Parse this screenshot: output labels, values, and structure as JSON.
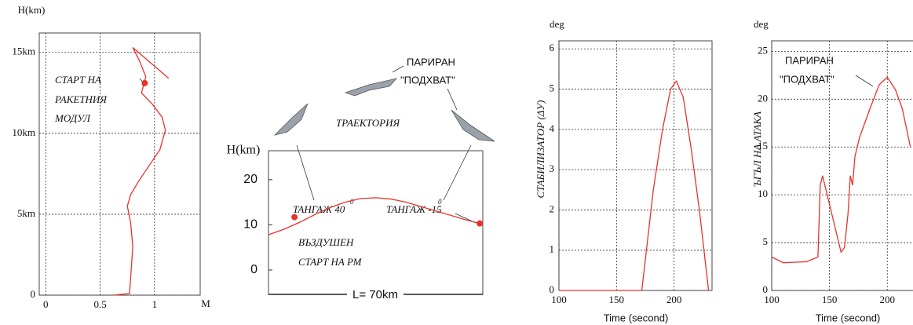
{
  "chart_data": [
    {
      "type": "line",
      "y_label": "H(km)",
      "x_label": "M",
      "grid": true,
      "xlim": [
        -0.06,
        1.42
      ],
      "ylim": [
        0,
        16.2
      ],
      "xticks": [
        0,
        0.5,
        1
      ],
      "yticks": [
        0,
        {
          "value": 5,
          "label": "5km"
        },
        {
          "value": 10,
          "label": "10km"
        },
        {
          "value": 15,
          "label": "15km"
        }
      ],
      "annotations": [
        "СТАРТ НА",
        "РАКЕТНИЯ",
        "МОДУЛ"
      ],
      "series": [
        {
          "color": "#e8322c",
          "x": [
            0.62,
            0.77,
            0.78,
            0.8,
            0.78,
            0.75,
            0.78,
            0.85,
            0.95,
            1.05,
            1.1,
            1.07,
            0.98,
            0.88,
            0.92,
            0.86,
            0.8,
            1.13
          ],
          "values": [
            0,
            0.1,
            1,
            3,
            4.5,
            5.5,
            6.2,
            7,
            8,
            9,
            10.2,
            11,
            11.8,
            12.5,
            13.5,
            14.5,
            15.3,
            13.4
          ]
        }
      ],
      "points": {
        "color": "#e8322c",
        "x": [
          0.91
        ],
        "values": [
          13.1
        ]
      }
    },
    {
      "type": "line",
      "y_label": "H(km)",
      "grid": false,
      "xlim": [
        0,
        70
      ],
      "ylim": [
        -5.4,
        26.4
      ],
      "yticks": [
        0,
        10,
        20
      ],
      "annotations": [
        "ПАРИРАН",
        "\"ПОДХВАТ\"",
        "ТРАЕКТОРИЯ",
        "ТАНГАЖ 40",
        "0",
        "ТАНГАЖ -15",
        "0",
        "ВЪЗДУШЕН",
        "СТАРТ НА РМ",
        "L= 70km"
      ],
      "series": [
        {
          "color": "#e8322c",
          "x": [
            0,
            5,
            10,
            15,
            20,
            25,
            30,
            35,
            40,
            45,
            50,
            55,
            60,
            65,
            69
          ],
          "values": [
            7.8,
            9,
            10.5,
            12.2,
            13.8,
            15,
            15.8,
            16,
            15.7,
            15,
            14,
            13,
            12,
            11,
            10.3
          ]
        }
      ],
      "points": {
        "color": "#e8322c",
        "x": [
          8.5,
          69
        ],
        "values": [
          11.7,
          10.3
        ]
      }
    },
    {
      "type": "line",
      "y_label": "СТАБИЛИЗАТОР (ΔУ)",
      "x_label": "Time (second)",
      "unit_label": "deg",
      "grid": true,
      "xlim": [
        100,
        233
      ],
      "ylim": [
        0,
        6.2
      ],
      "xticks": [
        100,
        150,
        200
      ],
      "yticks": [
        0,
        1,
        2,
        3,
        4,
        5,
        6
      ],
      "annotations": [],
      "series": [
        {
          "color": "#e8322c",
          "x": [
            100,
            172,
            176,
            182,
            190,
            197,
            202,
            208,
            215,
            222,
            228,
            230
          ],
          "values": [
            0,
            0,
            1,
            2.5,
            4,
            5,
            5.2,
            4.8,
            3.5,
            2,
            0.5,
            0
          ]
        }
      ]
    },
    {
      "type": "line",
      "y_label": "ЪГЪЛ НА АТАКА",
      "x_label": "Time (second)",
      "unit_label": "deg",
      "grid": true,
      "xlim": [
        100,
        227
      ],
      "ylim": [
        0,
        26.1
      ],
      "xticks": [
        100,
        150,
        200
      ],
      "yticks": [
        0,
        5,
        10,
        15,
        20,
        25
      ],
      "annotations": [
        "ПАРИРАН",
        "\"ПОДХВАТ\""
      ],
      "series": [
        {
          "color": "#e8322c",
          "x": [
            100,
            110,
            130,
            140,
            142,
            144,
            148,
            152,
            156,
            160,
            163,
            166,
            168,
            170,
            172,
            176,
            185,
            193,
            200,
            207,
            213,
            220
          ],
          "values": [
            3.5,
            2.9,
            3,
            3.5,
            11,
            12,
            10,
            8,
            6,
            4,
            4.5,
            8,
            12,
            11,
            14,
            16,
            19,
            21.5,
            22.3,
            21,
            19,
            15
          ]
        }
      ]
    }
  ]
}
